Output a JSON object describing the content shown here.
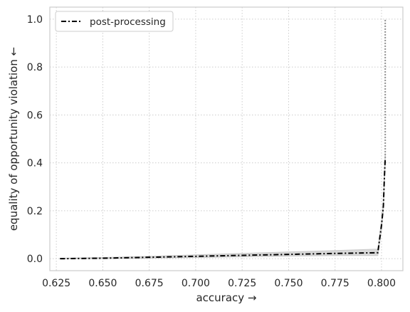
{
  "chart_data": {
    "type": "line",
    "title": "",
    "xlabel": "accuracy →",
    "ylabel": "equality of opportunity violation ←",
    "xlim": [
      0.6215,
      0.8115
    ],
    "ylim": [
      -0.05,
      1.05
    ],
    "xticks": [
      0.625,
      0.65,
      0.675,
      0.7,
      0.725,
      0.75,
      0.775,
      0.8
    ],
    "xtick_labels": [
      "0.625",
      "0.650",
      "0.675",
      "0.700",
      "0.725",
      "0.750",
      "0.775",
      "0.800"
    ],
    "yticks": [
      0.0,
      0.2,
      0.4,
      0.6,
      0.8,
      1.0
    ],
    "ytick_labels": [
      "0.0",
      "0.2",
      "0.4",
      "0.6",
      "0.8",
      "1.0"
    ],
    "grid": true,
    "legend_placement": "top-left",
    "series": [
      {
        "name": "post-processing",
        "color": "#000000",
        "linestyle": "dashdot",
        "x": [
          0.627,
          0.65,
          0.675,
          0.7,
          0.725,
          0.75,
          0.775,
          0.798,
          0.8,
          0.801,
          0.8015,
          0.802
        ],
        "y": [
          0.0,
          0.002,
          0.006,
          0.01,
          0.014,
          0.018,
          0.022,
          0.025,
          0.14,
          0.22,
          0.33,
          0.42
        ],
        "band_lower": [
          0.0,
          0.0,
          0.002,
          0.005,
          0.008,
          0.011,
          0.013,
          0.013,
          0.12,
          0.2,
          0.3,
          0.4
        ],
        "band_upper": [
          0.002,
          0.005,
          0.01,
          0.016,
          0.022,
          0.028,
          0.034,
          0.04,
          0.16,
          0.24,
          0.36,
          0.44
        ],
        "band_color": "#d9d9d9"
      },
      {
        "color": "#8c8c8c",
        "linestyle": "dotted",
        "x": [
          0.802,
          0.802
        ],
        "y": [
          0.42,
          1.0
        ]
      }
    ]
  }
}
